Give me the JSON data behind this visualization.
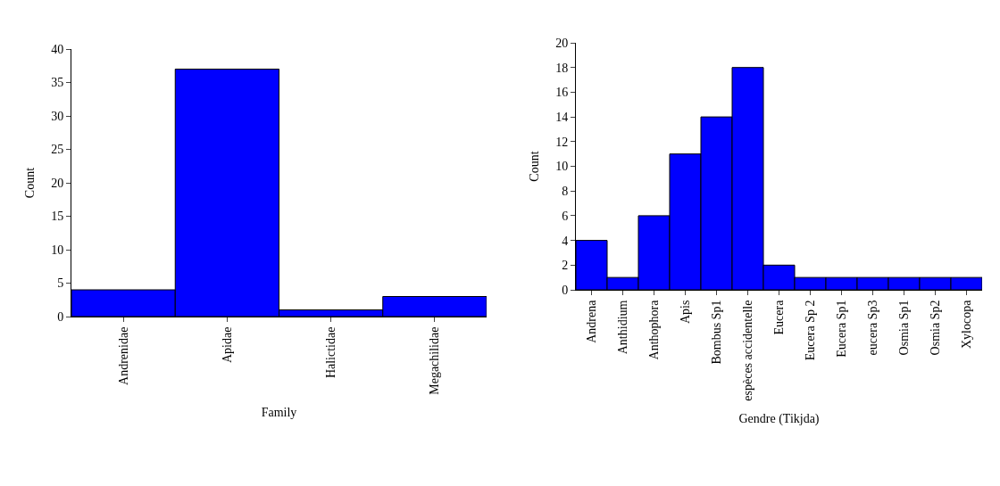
{
  "chart_data": [
    {
      "type": "bar",
      "xlabel": "Family",
      "ylabel": "Count",
      "categories": [
        "Andrenidae",
        "Apidae",
        "Halictidae",
        "Megachilidae"
      ],
      "values": [
        4,
        37,
        1,
        3
      ],
      "color": "#0000ff",
      "ylim": [
        0,
        40
      ],
      "yticks": [
        0,
        5,
        10,
        15,
        20,
        25,
        30,
        35,
        40
      ]
    },
    {
      "type": "bar",
      "xlabel": "Gendre (Tikjda)",
      "ylabel": "Count",
      "categories": [
        "Andrena",
        "Anthidium",
        "Anthophora",
        "Apis",
        "Bombus Sp1",
        "espèces accidentelle",
        "Eucera",
        "Eucera Sp 2",
        "Eucera Sp1",
        "eucera Sp3",
        "Osmia Sp1",
        "Osmia Sp2",
        "Xylocopa"
      ],
      "values": [
        4,
        1,
        6,
        11,
        14,
        18,
        2,
        1,
        1,
        1,
        1,
        1,
        1
      ],
      "color": "#0000ff",
      "ylim": [
        0,
        20
      ],
      "yticks": [
        0,
        2,
        4,
        6,
        8,
        10,
        12,
        14,
        16,
        18,
        20
      ]
    }
  ]
}
